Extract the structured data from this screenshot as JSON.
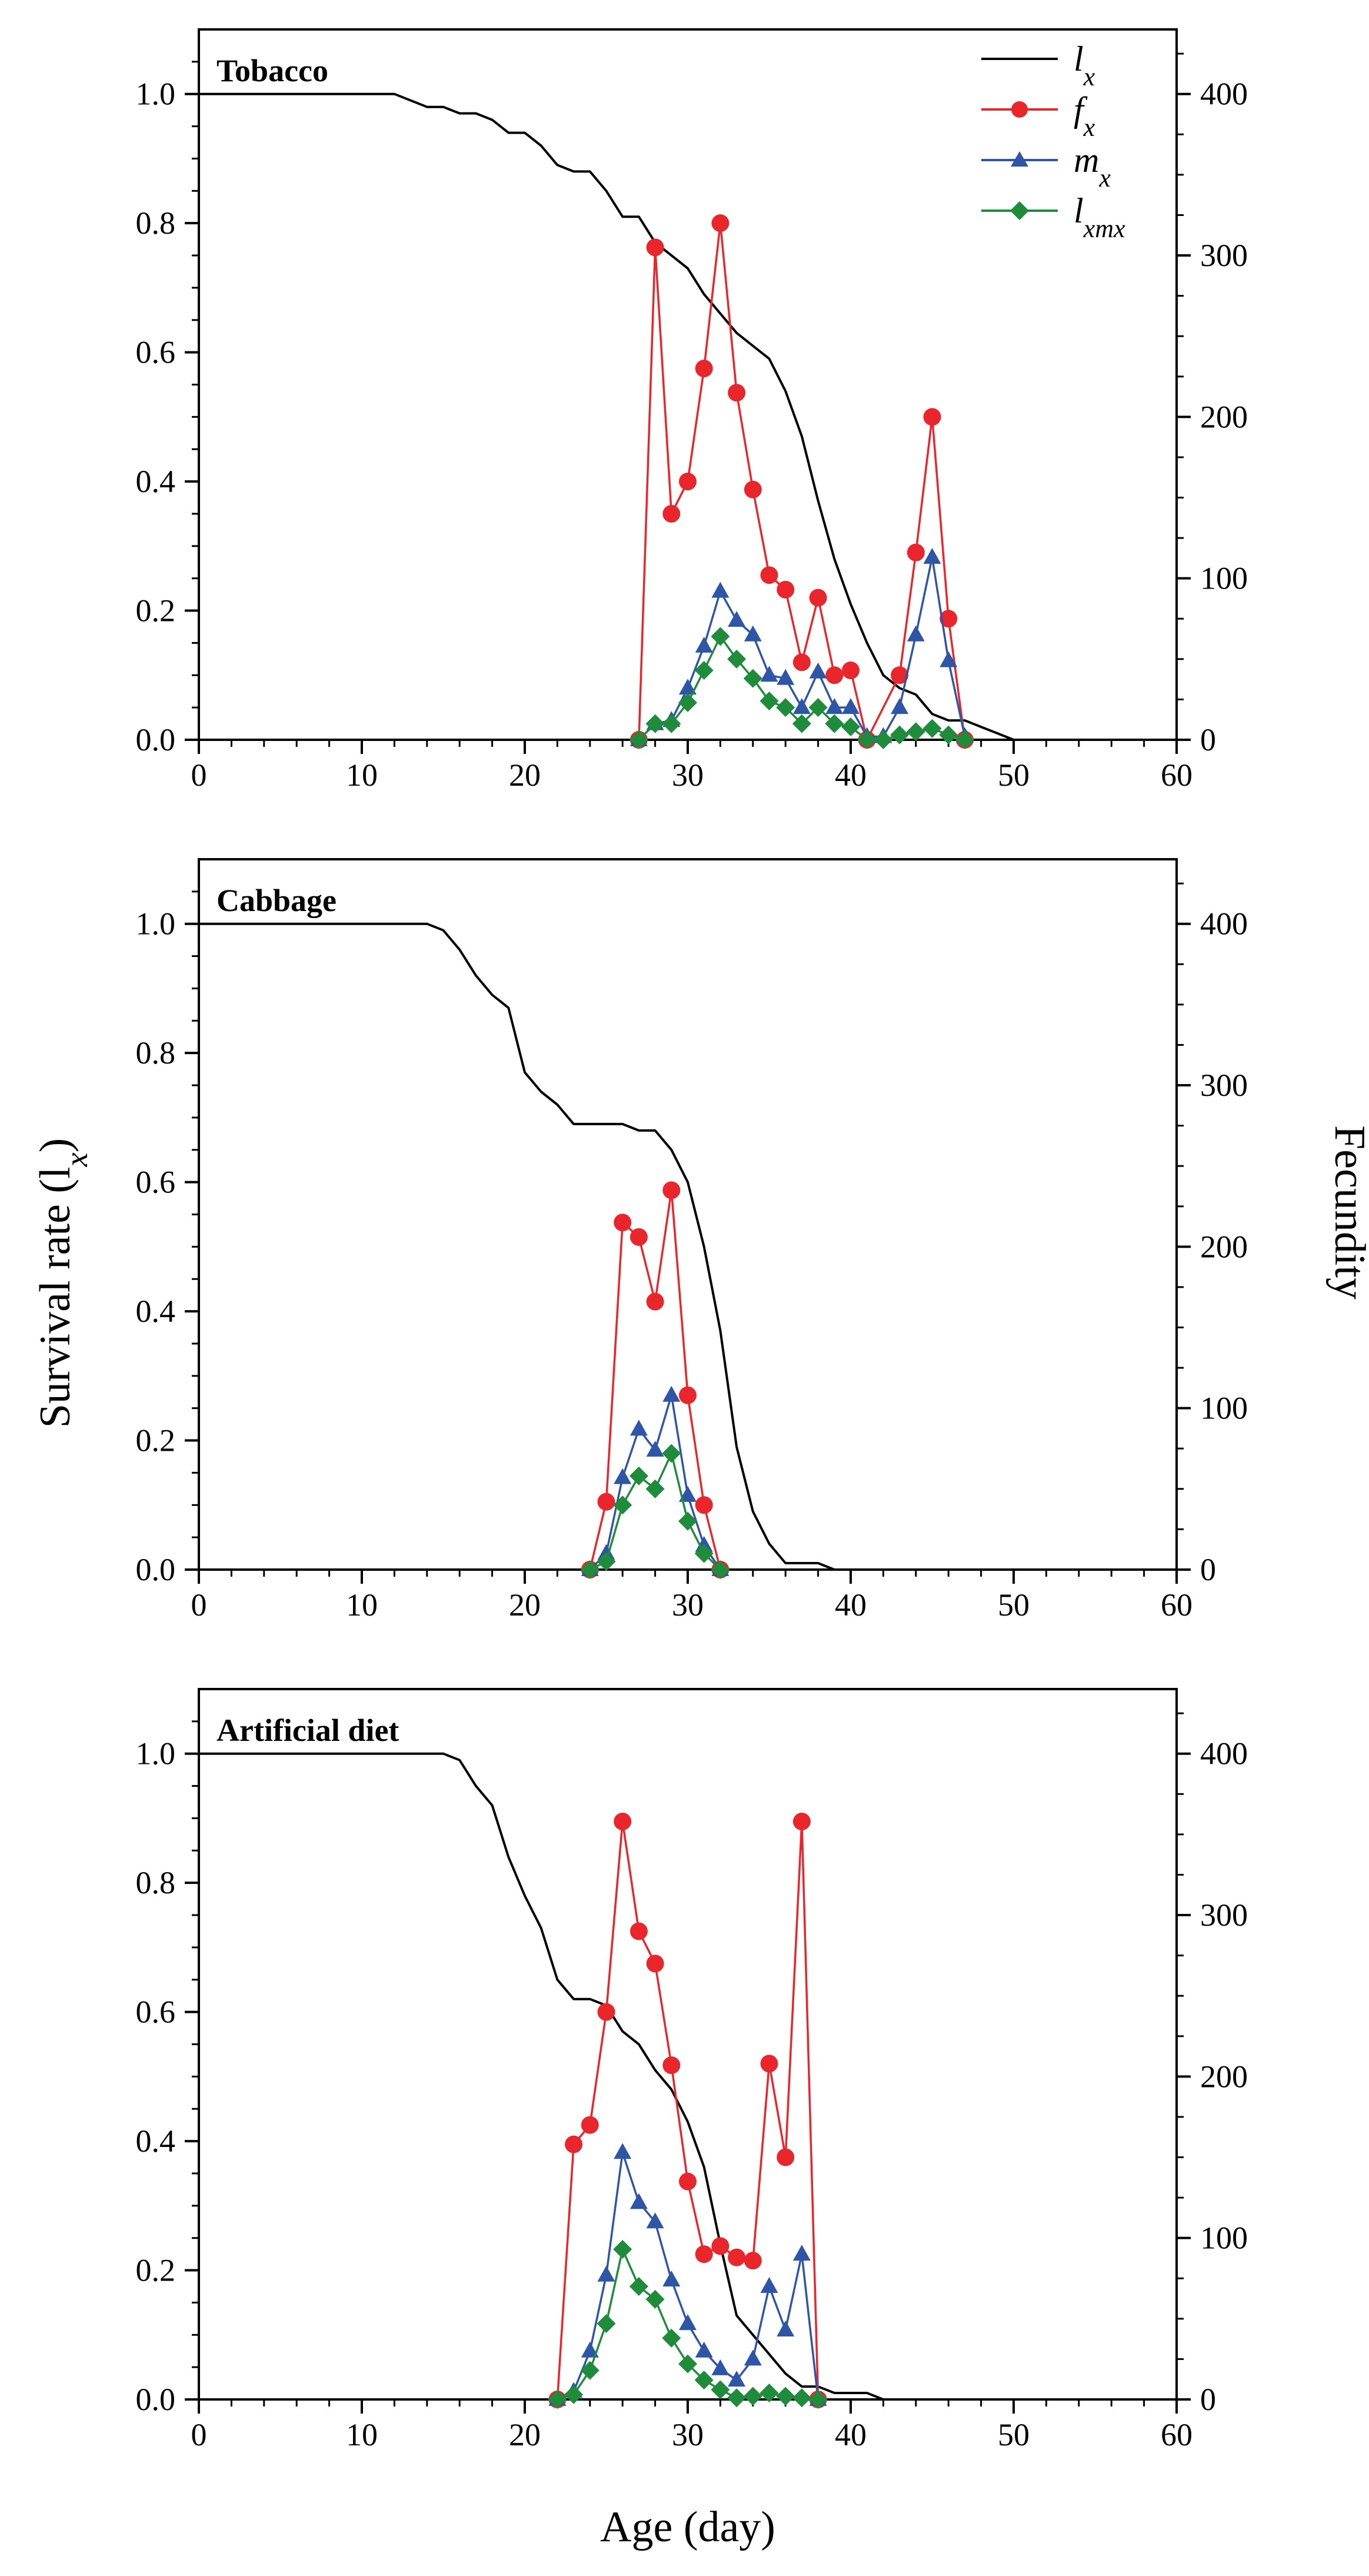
{
  "chart_data": [
    {
      "type": "line",
      "title": "Tobacco",
      "xlabel": "",
      "ylabel": "",
      "xlim": [
        0,
        60
      ],
      "ylim_left": [
        0,
        1.1
      ],
      "ylim_right": [
        0,
        440
      ],
      "xticks": [
        "0",
        "10",
        "20",
        "30",
        "40",
        "50",
        "60"
      ],
      "yticks_left": [
        "0.0",
        "0.2",
        "0.4",
        "0.6",
        "0.8",
        "1.0"
      ],
      "yticks_right": [
        "0",
        "100",
        "200",
        "300",
        "400"
      ],
      "series": [
        {
          "name": "lx",
          "axis": "left",
          "markers": false,
          "color": "#000000",
          "x": [
            0,
            12,
            14,
            15,
            16,
            17,
            18,
            19,
            20,
            21,
            22,
            23,
            24,
            25,
            26,
            27,
            28,
            29,
            30,
            31,
            32,
            33,
            34,
            35,
            36,
            37,
            38,
            39,
            40,
            41,
            42,
            43,
            44,
            45,
            46,
            47,
            48,
            49,
            50
          ],
          "y": [
            1.0,
            1.0,
            0.98,
            0.98,
            0.97,
            0.97,
            0.96,
            0.94,
            0.94,
            0.92,
            0.89,
            0.88,
            0.88,
            0.85,
            0.81,
            0.81,
            0.77,
            0.75,
            0.73,
            0.69,
            0.66,
            0.63,
            0.61,
            0.59,
            0.54,
            0.47,
            0.37,
            0.28,
            0.21,
            0.15,
            0.1,
            0.08,
            0.07,
            0.04,
            0.03,
            0.03,
            0.02,
            0.01,
            0.0
          ]
        },
        {
          "name": "fx",
          "axis": "right",
          "marker": "circle",
          "color": "#e8262b",
          "x": [
            27,
            28,
            29,
            30,
            31,
            32,
            33,
            34,
            35,
            36,
            37,
            38,
            39,
            40,
            41,
            43,
            44,
            45,
            46,
            47
          ],
          "y": [
            0,
            305,
            140,
            160,
            230,
            320,
            215,
            155,
            102,
            93,
            48,
            88,
            40,
            43,
            0,
            40,
            116,
            200,
            75,
            0
          ]
        },
        {
          "name": "mx",
          "axis": "right",
          "marker": "triangle",
          "color": "#2f55a6",
          "x": [
            27,
            28,
            29,
            30,
            31,
            32,
            33,
            34,
            35,
            36,
            37,
            38,
            39,
            40,
            41,
            42,
            43,
            44,
            45,
            46,
            47
          ],
          "y": [
            0,
            10,
            12,
            32,
            58,
            92,
            74,
            65,
            40,
            38,
            20,
            42,
            20,
            20,
            2,
            2,
            20,
            65,
            113,
            49,
            2
          ]
        },
        {
          "name": "lxmx",
          "axis": "right",
          "marker": "diamond",
          "color": "#1e8c3a",
          "x": [
            27,
            28,
            29,
            30,
            31,
            32,
            33,
            34,
            35,
            36,
            37,
            38,
            39,
            40,
            41,
            42,
            43,
            44,
            45,
            46,
            47
          ],
          "y": [
            0,
            10,
            10,
            23,
            43,
            64,
            50,
            38,
            24,
            20,
            10,
            20,
            10,
            8,
            0,
            0,
            3,
            5,
            7,
            3,
            0
          ]
        }
      ],
      "legend": {
        "position": "top-right",
        "entries": [
          "l",
          "f",
          "m",
          "l"
        ],
        "subscripts": [
          "x",
          "x",
          "x",
          "xmx"
        ]
      }
    },
    {
      "type": "line",
      "title": "Cabbage",
      "xlabel": "",
      "ylabel": "",
      "xlim": [
        0,
        60
      ],
      "ylim_left": [
        0,
        1.1
      ],
      "ylim_right": [
        0,
        440
      ],
      "xticks": [
        "0",
        "10",
        "20",
        "30",
        "40",
        "50",
        "60"
      ],
      "yticks_left": [
        "0.0",
        "0.2",
        "0.4",
        "0.6",
        "0.8",
        "1.0"
      ],
      "yticks_right": [
        "0",
        "100",
        "200",
        "300",
        "400"
      ],
      "series": [
        {
          "name": "lx",
          "axis": "left",
          "markers": false,
          "color": "#000000",
          "x": [
            0,
            14,
            15,
            16,
            17,
            18,
            19,
            20,
            21,
            22,
            23,
            24,
            25,
            26,
            27,
            28,
            29,
            30,
            31,
            32,
            33,
            34,
            35,
            36,
            37,
            38,
            39
          ],
          "y": [
            1.0,
            1.0,
            0.99,
            0.96,
            0.92,
            0.89,
            0.87,
            0.77,
            0.74,
            0.72,
            0.69,
            0.69,
            0.69,
            0.69,
            0.68,
            0.68,
            0.65,
            0.6,
            0.5,
            0.37,
            0.19,
            0.09,
            0.04,
            0.01,
            0.01,
            0.01,
            0.0
          ]
        },
        {
          "name": "fx",
          "axis": "right",
          "marker": "circle",
          "color": "#e8262b",
          "x": [
            24,
            25,
            26,
            27,
            28,
            29,
            30,
            31,
            32
          ],
          "y": [
            0,
            42,
            215,
            206,
            166,
            235,
            108,
            40,
            0
          ]
        },
        {
          "name": "mx",
          "axis": "right",
          "marker": "triangle",
          "color": "#2f55a6",
          "x": [
            24,
            25,
            26,
            27,
            28,
            29,
            30,
            31,
            32
          ],
          "y": [
            0,
            10,
            57,
            87,
            74,
            108,
            46,
            15,
            0
          ]
        },
        {
          "name": "lxmx",
          "axis": "right",
          "marker": "diamond",
          "color": "#1e8c3a",
          "x": [
            24,
            25,
            26,
            27,
            28,
            29,
            30,
            31,
            32
          ],
          "y": [
            0,
            5,
            40,
            58,
            50,
            72,
            30,
            10,
            0
          ]
        }
      ]
    },
    {
      "type": "line",
      "title": "Artificial diet",
      "xlabel": "Age (day)",
      "ylabel": "",
      "xlim": [
        0,
        60
      ],
      "ylim_left": [
        0,
        1.1
      ],
      "ylim_right": [
        0,
        440
      ],
      "xticks": [
        "0",
        "10",
        "20",
        "30",
        "40",
        "50",
        "60"
      ],
      "yticks_left": [
        "0.0",
        "0.2",
        "0.4",
        "0.6",
        "0.8",
        "1.0"
      ],
      "yticks_right": [
        "0",
        "100",
        "200",
        "300",
        "400"
      ],
      "series": [
        {
          "name": "lx",
          "axis": "left",
          "markers": false,
          "color": "#000000",
          "x": [
            0,
            15,
            16,
            17,
            18,
            19,
            20,
            21,
            22,
            23,
            24,
            25,
            26,
            27,
            28,
            29,
            30,
            31,
            32,
            33,
            34,
            35,
            36,
            37,
            38,
            39,
            40,
            41,
            42
          ],
          "y": [
            1.0,
            1.0,
            0.99,
            0.95,
            0.92,
            0.84,
            0.78,
            0.73,
            0.65,
            0.62,
            0.62,
            0.61,
            0.57,
            0.55,
            0.51,
            0.48,
            0.43,
            0.36,
            0.24,
            0.13,
            0.1,
            0.07,
            0.04,
            0.02,
            0.02,
            0.01,
            0.01,
            0.01,
            0.0
          ]
        },
        {
          "name": "fx",
          "axis": "right",
          "marker": "circle",
          "color": "#e8262b",
          "x": [
            22,
            23,
            24,
            25,
            26,
            27,
            28,
            29,
            30,
            31,
            32,
            33,
            34,
            35,
            36,
            37,
            38
          ],
          "y": [
            0,
            158,
            170,
            240,
            358,
            290,
            270,
            207,
            135,
            90,
            95,
            88,
            86,
            208,
            150,
            358,
            0
          ]
        },
        {
          "name": "mx",
          "axis": "right",
          "marker": "triangle",
          "color": "#2f55a6",
          "x": [
            22,
            23,
            24,
            25,
            26,
            27,
            28,
            29,
            30,
            31,
            32,
            33,
            34,
            35,
            36,
            37,
            38
          ],
          "y": [
            0,
            5,
            30,
            77,
            153,
            122,
            110,
            74,
            47,
            30,
            19,
            12,
            25,
            70,
            43,
            90,
            0
          ]
        },
        {
          "name": "lxmx",
          "axis": "right",
          "marker": "diamond",
          "color": "#1e8c3a",
          "x": [
            22,
            23,
            24,
            25,
            26,
            27,
            28,
            29,
            30,
            31,
            32,
            33,
            34,
            35,
            36,
            37,
            38
          ],
          "y": [
            0,
            3,
            18,
            47,
            93,
            70,
            62,
            38,
            22,
            12,
            6,
            1,
            2,
            4,
            2,
            1,
            0
          ]
        }
      ]
    }
  ],
  "figure": {
    "left_axis_title": "Survival rate (l",
    "left_axis_title_sub": "x",
    "left_axis_title_close": ")",
    "right_axis_title": "Fecundity",
    "bottom_axis_title": "Age (day)"
  }
}
